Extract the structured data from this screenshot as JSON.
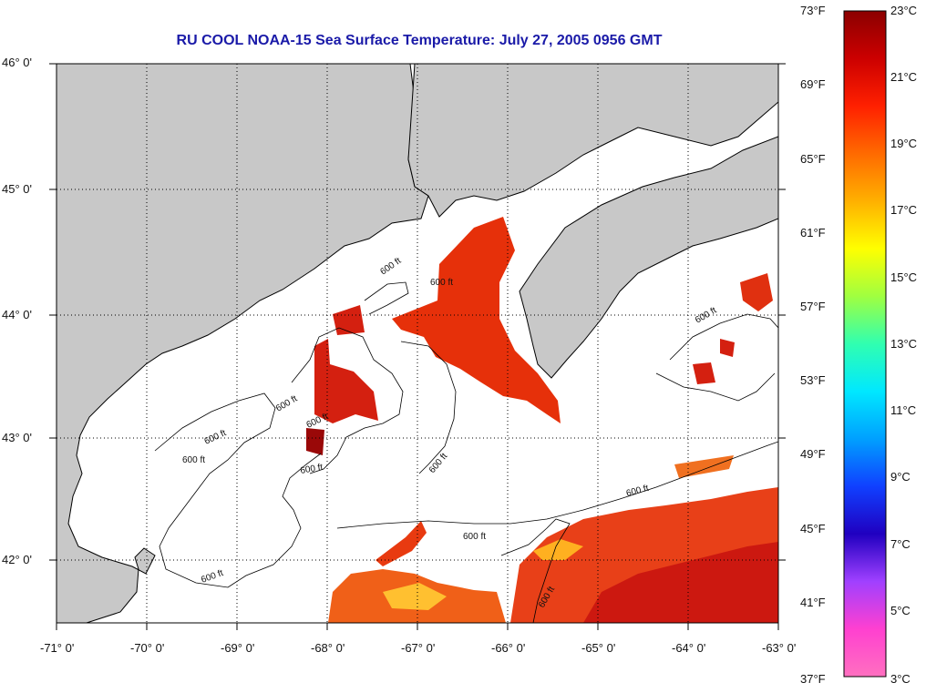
{
  "title": "RU COOL  NOAA-15  Sea Surface Temperature:  July 27, 2005 0956 GMT",
  "map": {
    "lat_labels": [
      "46° 0'",
      "45° 0'",
      "44° 0'",
      "43° 0'",
      "42° 0'"
    ],
    "lon_labels": [
      "-71° 0'",
      "-70° 0'",
      "-69° 0'",
      "-68° 0'",
      "-67° 0'",
      "-66° 0'",
      "-65° 0'",
      "-64° 0'",
      "-63° 0'"
    ],
    "contour_label": "600 ft",
    "colors": {
      "land": "#c8c8c8",
      "water": "#ffffff",
      "coast": "#000000"
    }
  },
  "colorbar": {
    "fahrenheit": [
      "73°F",
      "69°F",
      "65°F",
      "61°F",
      "57°F",
      "53°F",
      "49°F",
      "45°F",
      "41°F",
      "37°F"
    ],
    "celsius": [
      "23°C",
      "21°C",
      "19°C",
      "17°C",
      "15°C",
      "13°C",
      "11°C",
      "9°C",
      "7°C",
      "5°C",
      "3°C"
    ],
    "gradient": [
      "#8b0000",
      "#cc0000",
      "#ff2000",
      "#ff6a00",
      "#ffb000",
      "#ffff00",
      "#a0ff40",
      "#30ffb0",
      "#00e8ff",
      "#00a0ff",
      "#1040ff",
      "#2000c0",
      "#a040ff",
      "#ff40d0",
      "#ff70c0"
    ]
  }
}
